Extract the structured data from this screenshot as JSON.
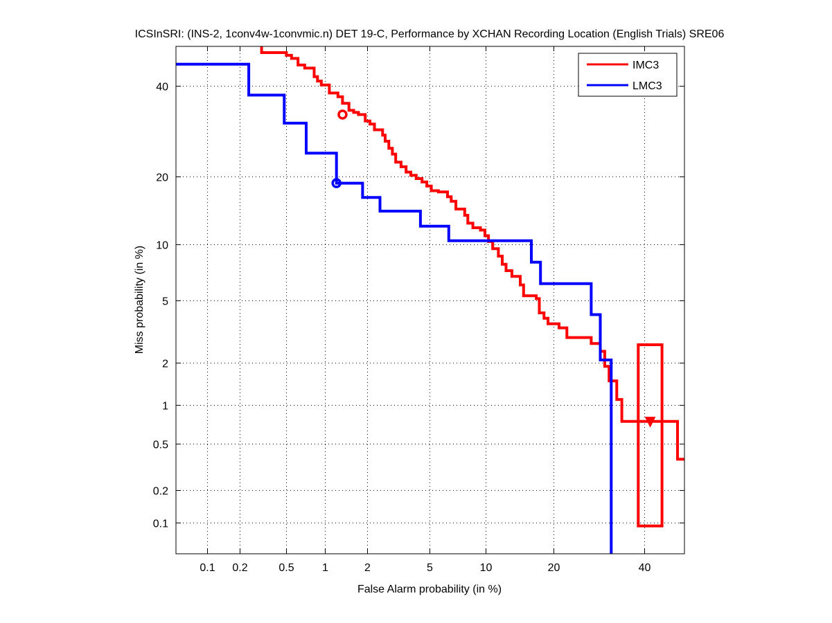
{
  "chart_data": {
    "type": "line",
    "subtype": "DET curve (normal deviate scale)",
    "title": "ICSInSRI: (INS-2, 1conv4w-1convmic.n) DET 19-C,  Performance by XCHAN Recording Location (English Trials) SRE06",
    "xlabel": "False Alarm probability (in %)",
    "ylabel": "Miss probability (in %)",
    "xscale": "probit",
    "yscale": "probit",
    "xlim": [
      0.05,
      55
    ],
    "ylim": [
      0.04,
      55
    ],
    "xticks": [
      0.1,
      0.2,
      0.5,
      1,
      2,
      5,
      10,
      20,
      40
    ],
    "xtick_labels": [
      "0.1",
      "0.2",
      "0.5",
      "1",
      "2",
      "5",
      "10",
      "20",
      "40"
    ],
    "yticks": [
      0.1,
      0.2,
      0.5,
      1,
      2,
      5,
      10,
      20,
      40
    ],
    "ytick_labels": [
      "0.1",
      "0.2",
      "0.5",
      "1",
      "2",
      "5",
      "10",
      "20",
      "40"
    ],
    "grid": true,
    "legend_position": "top-right",
    "series": [
      {
        "name": "IMC3",
        "color": "#ff0000",
        "points": [
          [
            0.31,
            55
          ],
          [
            0.31,
            48.5
          ],
          [
            0.5,
            48.5
          ],
          [
            0.5,
            47.8
          ],
          [
            0.55,
            47.8
          ],
          [
            0.55,
            47.0
          ],
          [
            0.62,
            47.0
          ],
          [
            0.62,
            45.3
          ],
          [
            0.7,
            45.3
          ],
          [
            0.7,
            44.5
          ],
          [
            0.83,
            44.5
          ],
          [
            0.83,
            42.3
          ],
          [
            0.88,
            42.3
          ],
          [
            0.88,
            41.2
          ],
          [
            0.94,
            41.2
          ],
          [
            0.94,
            40.2
          ],
          [
            1.08,
            40.2
          ],
          [
            1.08,
            38.2
          ],
          [
            1.25,
            38.2
          ],
          [
            1.25,
            37.3
          ],
          [
            1.35,
            37.3
          ],
          [
            1.35,
            35.7
          ],
          [
            1.5,
            35.7
          ],
          [
            1.5,
            34.0
          ],
          [
            1.62,
            34.0
          ],
          [
            1.62,
            33.5
          ],
          [
            1.75,
            33.5
          ],
          [
            1.75,
            33.0
          ],
          [
            1.95,
            33.0
          ],
          [
            1.95,
            31.5
          ],
          [
            2.1,
            31.5
          ],
          [
            2.1,
            30.8
          ],
          [
            2.25,
            30.8
          ],
          [
            2.25,
            29.5
          ],
          [
            2.55,
            29.5
          ],
          [
            2.55,
            28.3
          ],
          [
            2.65,
            28.3
          ],
          [
            2.65,
            27.0
          ],
          [
            2.8,
            27.0
          ],
          [
            2.8,
            25.5
          ],
          [
            2.95,
            25.5
          ],
          [
            2.95,
            24.3
          ],
          [
            3.1,
            24.3
          ],
          [
            3.1,
            22.7
          ],
          [
            3.35,
            22.7
          ],
          [
            3.35,
            21.8
          ],
          [
            3.6,
            21.8
          ],
          [
            3.6,
            20.8
          ],
          [
            3.85,
            20.8
          ],
          [
            3.85,
            20.2
          ],
          [
            4.15,
            20.2
          ],
          [
            4.15,
            19.6
          ],
          [
            4.5,
            19.6
          ],
          [
            4.5,
            19.0
          ],
          [
            4.8,
            19.0
          ],
          [
            4.8,
            18.3
          ],
          [
            5.1,
            18.3
          ],
          [
            5.1,
            17.5
          ],
          [
            5.6,
            17.5
          ],
          [
            5.6,
            17.3
          ],
          [
            6.3,
            17.3
          ],
          [
            6.3,
            16.5
          ],
          [
            6.6,
            16.5
          ],
          [
            6.6,
            15.8
          ],
          [
            7.0,
            15.8
          ],
          [
            7.0,
            14.6
          ],
          [
            7.8,
            14.6
          ],
          [
            7.8,
            13.7
          ],
          [
            8.1,
            13.7
          ],
          [
            8.1,
            12.6
          ],
          [
            8.6,
            12.6
          ],
          [
            8.6,
            12.0
          ],
          [
            9.4,
            12.0
          ],
          [
            9.4,
            11.7
          ],
          [
            9.9,
            11.7
          ],
          [
            9.9,
            11.0
          ],
          [
            10.3,
            11.0
          ],
          [
            10.3,
            10.3
          ],
          [
            10.8,
            10.3
          ],
          [
            10.8,
            9.5
          ],
          [
            11.5,
            9.5
          ],
          [
            11.5,
            8.7
          ],
          [
            12.0,
            8.7
          ],
          [
            12.0,
            7.9
          ],
          [
            12.5,
            7.9
          ],
          [
            12.5,
            7.3
          ],
          [
            13.3,
            7.3
          ],
          [
            13.3,
            6.8
          ],
          [
            14.5,
            6.8
          ],
          [
            14.5,
            6.1
          ],
          [
            15.0,
            6.1
          ],
          [
            15.0,
            5.3
          ],
          [
            17.0,
            5.3
          ],
          [
            17.0,
            5.1
          ],
          [
            17.5,
            5.1
          ],
          [
            17.5,
            4.2
          ],
          [
            18.3,
            4.2
          ],
          [
            18.3,
            3.9
          ],
          [
            19.0,
            3.9
          ],
          [
            19.0,
            3.6
          ],
          [
            21.0,
            3.6
          ],
          [
            21.0,
            3.4
          ],
          [
            22.5,
            3.4
          ],
          [
            22.5,
            2.95
          ],
          [
            27.5,
            2.95
          ],
          [
            27.5,
            2.7
          ],
          [
            29.5,
            2.7
          ],
          [
            29.5,
            2.4
          ],
          [
            30.5,
            2.4
          ],
          [
            30.5,
            1.9
          ],
          [
            31.5,
            1.9
          ],
          [
            31.5,
            1.5
          ],
          [
            33.3,
            1.5
          ],
          [
            33.3,
            1.1
          ],
          [
            34.5,
            1.1
          ],
          [
            34.5,
            0.75
          ],
          [
            48.5,
            0.75
          ],
          [
            48.5,
            0.37
          ],
          [
            55,
            0.37
          ]
        ],
        "min_dcf_point": [
          1.35,
          33.0
        ],
        "min_dcf_marker": "circle",
        "actual_dcf_point": [
          41.5,
          0.75
        ],
        "actual_dcf_marker": "triangle-down",
        "confidence_box": {
          "fa_range": [
            38.5,
            44.5
          ],
          "miss_range": [
            0.093,
            2.65
          ]
        }
      },
      {
        "name": "LMC3",
        "color": "#0000ff",
        "points": [
          [
            0.05,
            45.5
          ],
          [
            0.24,
            45.5
          ],
          [
            0.24,
            37.7
          ],
          [
            0.48,
            37.7
          ],
          [
            0.48,
            31.0
          ],
          [
            0.72,
            31.0
          ],
          [
            0.72,
            24.5
          ],
          [
            1.22,
            24.5
          ],
          [
            1.22,
            18.8
          ],
          [
            1.87,
            18.8
          ],
          [
            1.87,
            16.4
          ],
          [
            2.45,
            16.4
          ],
          [
            2.45,
            14.3
          ],
          [
            4.4,
            14.3
          ],
          [
            4.4,
            12.2
          ],
          [
            6.4,
            12.2
          ],
          [
            6.4,
            10.4
          ],
          [
            16.2,
            10.4
          ],
          [
            16.2,
            8.1
          ],
          [
            17.7,
            8.1
          ],
          [
            17.7,
            6.2
          ],
          [
            27.5,
            6.2
          ],
          [
            27.5,
            4.1
          ],
          [
            29.5,
            4.1
          ],
          [
            29.5,
            2.1
          ],
          [
            32.0,
            2.1
          ],
          [
            32.0,
            0.04
          ]
        ],
        "min_dcf_point": [
          1.22,
          18.8
        ],
        "min_dcf_marker": "circle"
      }
    ]
  }
}
